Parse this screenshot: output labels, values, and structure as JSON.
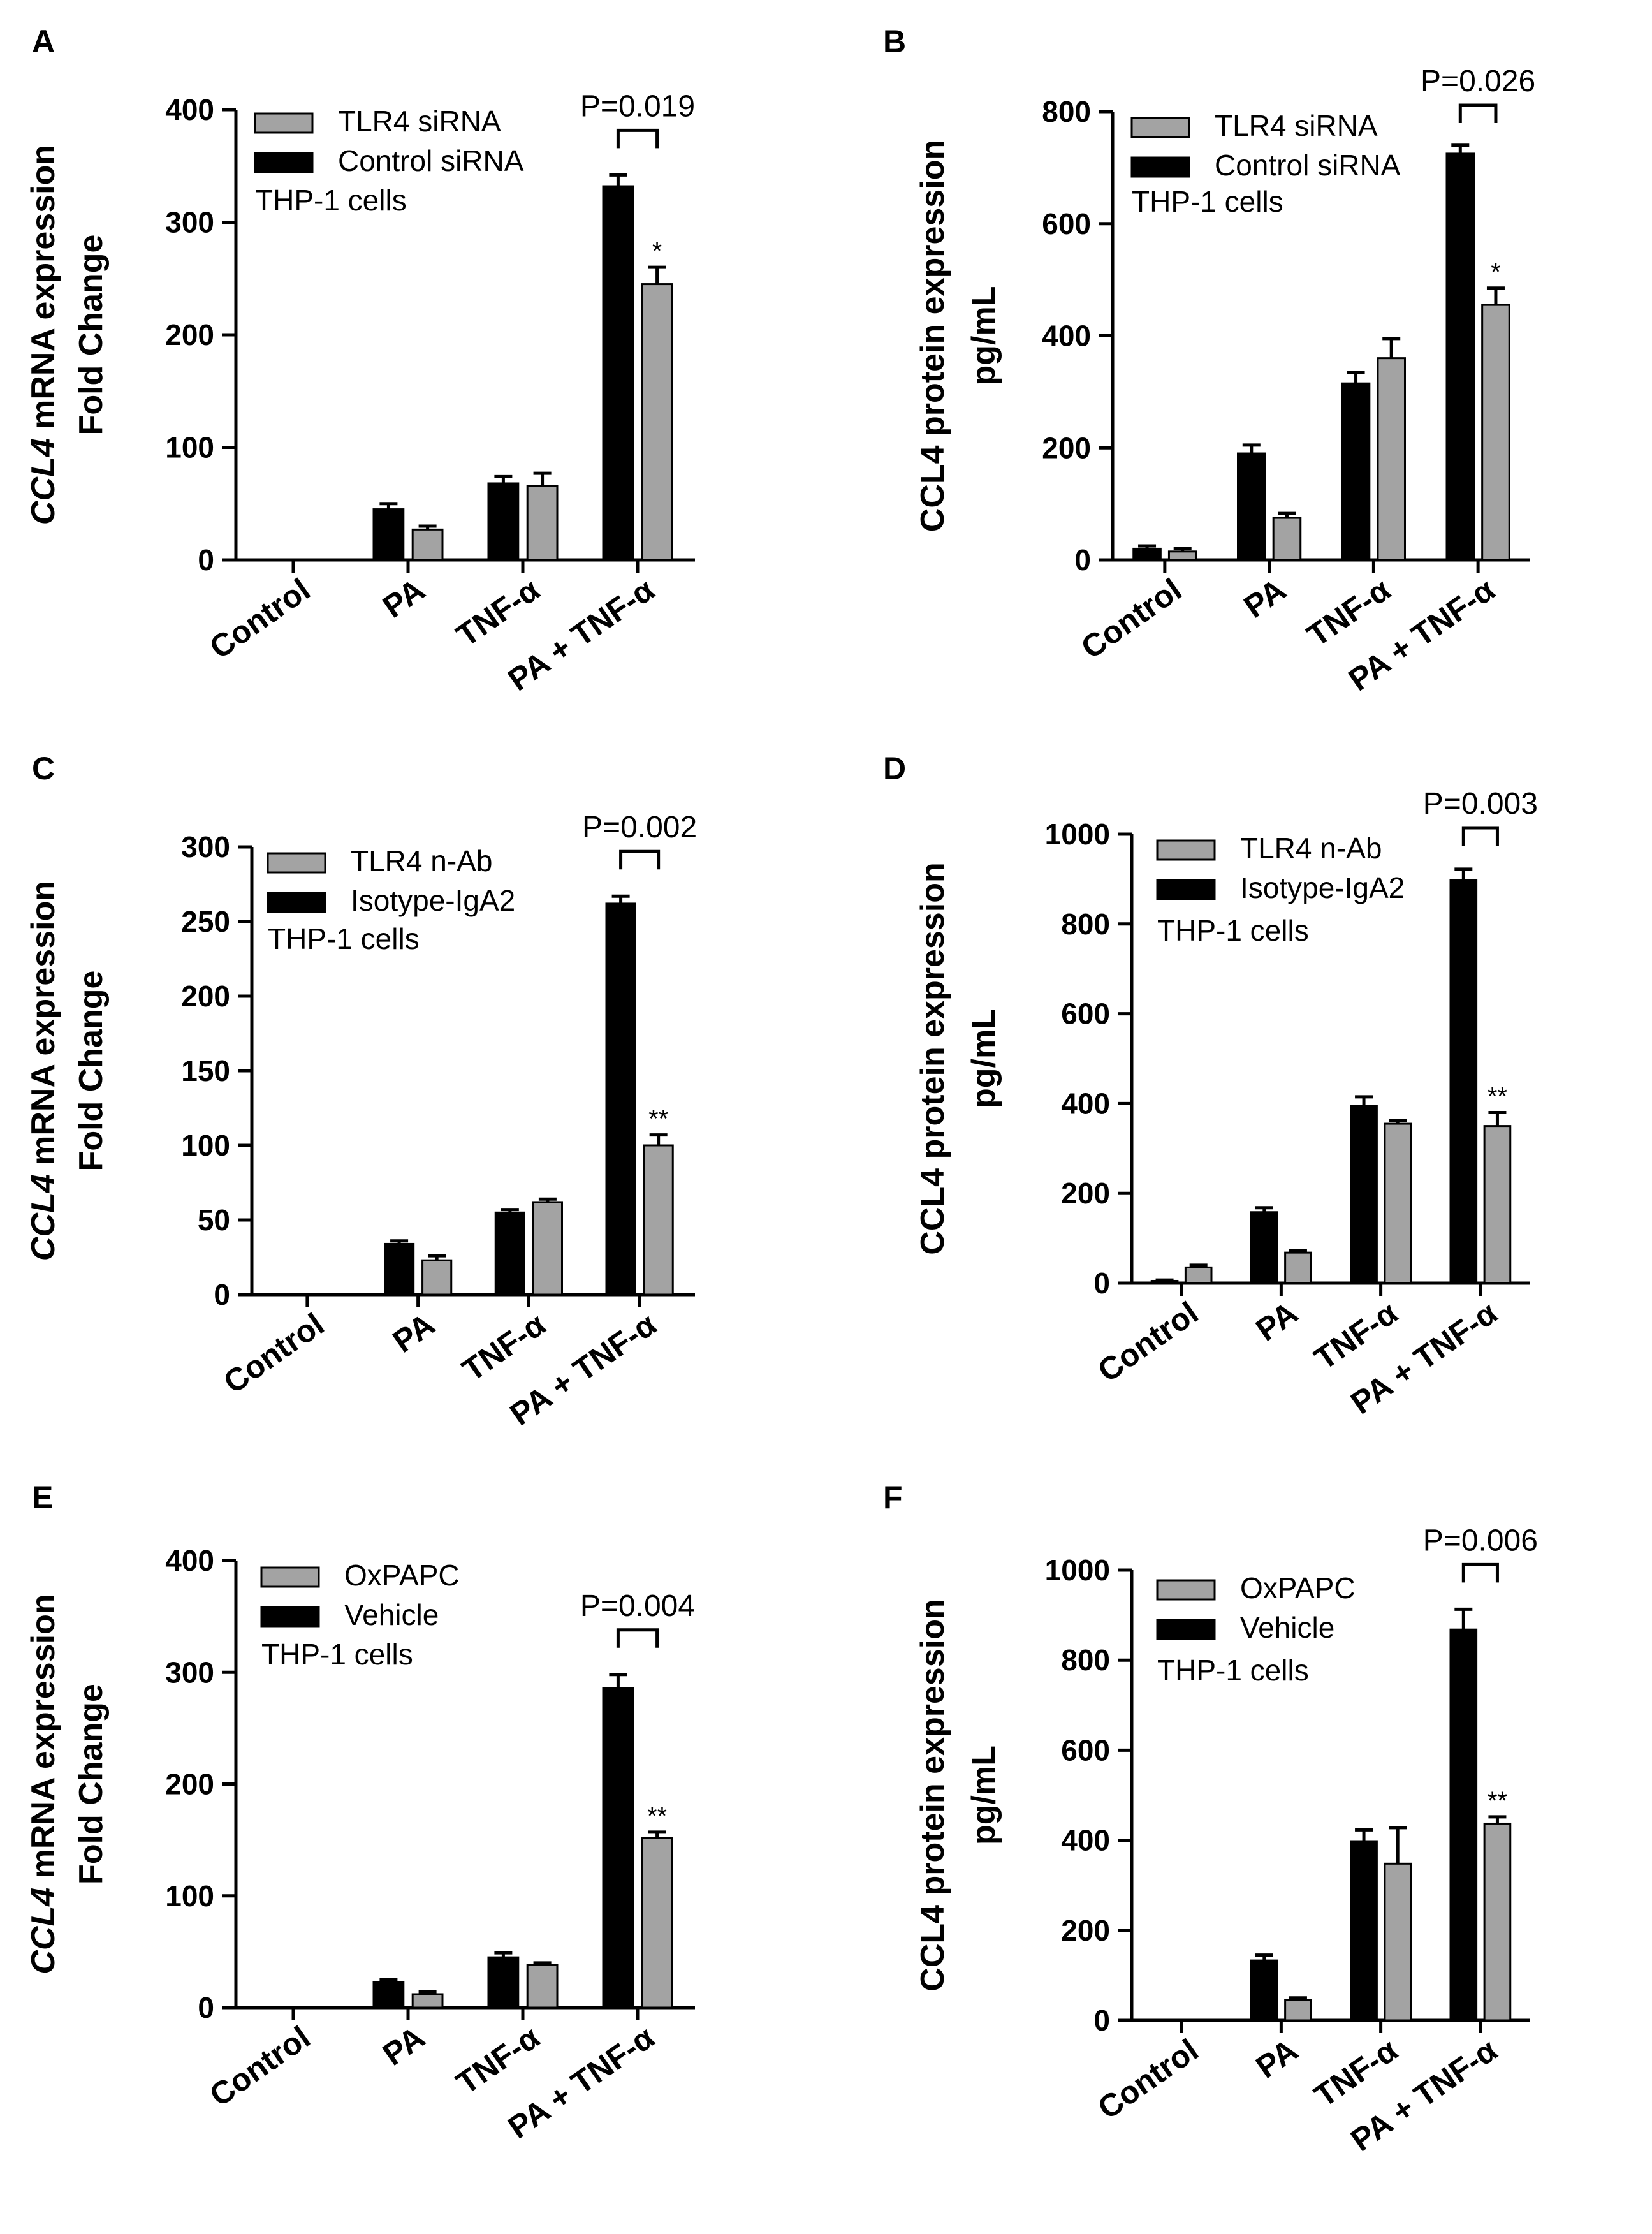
{
  "colors": {
    "control_bar": "#000000",
    "treated_bar": "#a3a3a3",
    "axis": "#000000"
  },
  "chart_data": [
    {
      "letter": "A",
      "type": "bar",
      "ylabel_lines": [
        [
          {
            "text": "CCL4",
            "italic": true
          },
          {
            "text": " mRNA expression",
            "italic": false
          }
        ],
        [
          {
            "text": "Fold Change",
            "italic": false
          }
        ]
      ],
      "ylim": [
        0,
        400
      ],
      "yticks": [
        "0",
        "100",
        "200",
        "300",
        "400"
      ],
      "categories": [
        "Control",
        "PA",
        "TNF-α",
        "PA + TNF-α"
      ],
      "legend": [
        "TLR4 siRNA",
        "Control siRNA"
      ],
      "annotation": "THP-1 cells",
      "series": [
        {
          "name": "Control siRNA",
          "color": "control",
          "values": [
            0,
            45,
            68,
            332
          ],
          "errors": [
            0,
            5,
            6,
            10
          ]
        },
        {
          "name": "TLR4 siRNA",
          "color": "treated",
          "values": [
            0,
            27,
            66,
            245
          ],
          "errors": [
            0,
            3,
            11,
            15
          ]
        }
      ],
      "pvalue": "P=0.019",
      "stars": "*"
    },
    {
      "letter": "B",
      "type": "bar",
      "ylabel_lines": [
        [
          {
            "text": "CCL4 protein expression",
            "italic": false
          }
        ],
        [
          {
            "text": "pg/mL",
            "italic": false
          }
        ]
      ],
      "ylim": [
        0,
        800
      ],
      "yticks": [
        "0",
        "200",
        "400",
        "600",
        "800"
      ],
      "categories": [
        "Control",
        "PA",
        "TNF-α",
        "PA + TNF-α"
      ],
      "legend": [
        "TLR4 siRNA",
        "Control siRNA"
      ],
      "annotation": "THP-1 cells",
      "series": [
        {
          "name": "Control siRNA",
          "color": "control",
          "values": [
            20,
            190,
            315,
            725
          ],
          "errors": [
            5,
            15,
            20,
            15
          ]
        },
        {
          "name": "TLR4 siRNA",
          "color": "treated",
          "values": [
            15,
            75,
            360,
            455
          ],
          "errors": [
            5,
            8,
            35,
            30
          ]
        }
      ],
      "pvalue": "P=0.026",
      "stars": "*"
    },
    {
      "letter": "C",
      "type": "bar",
      "ylabel_lines": [
        [
          {
            "text": "CCL4",
            "italic": true
          },
          {
            "text": " mRNA expression",
            "italic": false
          }
        ],
        [
          {
            "text": "Fold Change",
            "italic": false
          }
        ]
      ],
      "ylim": [
        0,
        300
      ],
      "yticks": [
        "0",
        "50",
        "100",
        "150",
        "200",
        "250",
        "300"
      ],
      "categories": [
        "Control",
        "PA",
        "TNF-α",
        "PA + TNF-α"
      ],
      "legend": [
        "TLR4 n-Ab",
        "Isotype-IgA2"
      ],
      "annotation": "THP-1 cells",
      "series": [
        {
          "name": "Isotype-IgA2",
          "color": "control",
          "values": [
            0,
            34,
            55,
            262
          ],
          "errors": [
            0,
            2,
            2,
            5
          ]
        },
        {
          "name": "TLR4 n-Ab",
          "color": "treated",
          "values": [
            0,
            23,
            62,
            100
          ],
          "errors": [
            0,
            3,
            2,
            7
          ]
        }
      ],
      "pvalue": "P=0.002",
      "stars": "**"
    },
    {
      "letter": "D",
      "type": "bar",
      "ylabel_lines": [
        [
          {
            "text": "CCL4 protein expression",
            "italic": false
          }
        ],
        [
          {
            "text": "pg/mL",
            "italic": false
          }
        ]
      ],
      "ylim": [
        0,
        1000
      ],
      "yticks": [
        "0",
        "200",
        "400",
        "600",
        "800",
        "1000"
      ],
      "categories": [
        "Control",
        "PA",
        "TNF-α",
        "PA + TNF-α"
      ],
      "legend": [
        "TLR4 n-Ab",
        "Isotype-IgA2"
      ],
      "annotation": "THP-1 cells",
      "series": [
        {
          "name": "Isotype-IgA2",
          "color": "control",
          "values": [
            5,
            158,
            395,
            897
          ],
          "errors": [
            2,
            10,
            20,
            25
          ]
        },
        {
          "name": "TLR4 n-Ab",
          "color": "treated",
          "values": [
            35,
            68,
            355,
            350
          ],
          "errors": [
            5,
            5,
            8,
            30
          ]
        }
      ],
      "pvalue": "P=0.003",
      "stars": "**"
    },
    {
      "letter": "E",
      "type": "bar",
      "ylabel_lines": [
        [
          {
            "text": "CCL4",
            "italic": true
          },
          {
            "text": " mRNA expression",
            "italic": false
          }
        ],
        [
          {
            "text": "Fold Change",
            "italic": false
          }
        ]
      ],
      "ylim": [
        0,
        400
      ],
      "yticks": [
        "0",
        "100",
        "200",
        "300",
        "400"
      ],
      "categories": [
        "Control",
        "PA",
        "TNF-α",
        "PA + TNF-α"
      ],
      "legend": [
        "OxPAPC",
        "Vehicle"
      ],
      "annotation": "THP-1 cells",
      "series": [
        {
          "name": "Vehicle",
          "color": "control",
          "values": [
            0,
            23,
            45,
            286
          ],
          "errors": [
            0,
            2,
            4,
            12
          ]
        },
        {
          "name": "OxPAPC",
          "color": "treated",
          "values": [
            0,
            12,
            38,
            152
          ],
          "errors": [
            0,
            2,
            2,
            5
          ]
        }
      ],
      "pvalue": "P=0.004",
      "stars": "**"
    },
    {
      "letter": "F",
      "type": "bar",
      "ylabel_lines": [
        [
          {
            "text": "CCL4 protein expression",
            "italic": false
          }
        ],
        [
          {
            "text": "pg/mL",
            "italic": false
          }
        ]
      ],
      "ylim": [
        0,
        1000
      ],
      "yticks": [
        "0",
        "200",
        "400",
        "600",
        "800",
        "1000"
      ],
      "categories": [
        "Control",
        "PA",
        "TNF-α",
        "PA + TNF-α"
      ],
      "legend": [
        "OxPAPC",
        "Vehicle"
      ],
      "annotation": "THP-1 cells",
      "series": [
        {
          "name": "Vehicle",
          "color": "control",
          "values": [
            0,
            133,
            398,
            868
          ],
          "errors": [
            0,
            12,
            25,
            45
          ]
        },
        {
          "name": "OxPAPC",
          "color": "treated",
          "values": [
            0,
            45,
            348,
            437
          ],
          "errors": [
            0,
            5,
            80,
            15
          ]
        }
      ],
      "pvalue": "P=0.006",
      "stars": "**"
    }
  ]
}
